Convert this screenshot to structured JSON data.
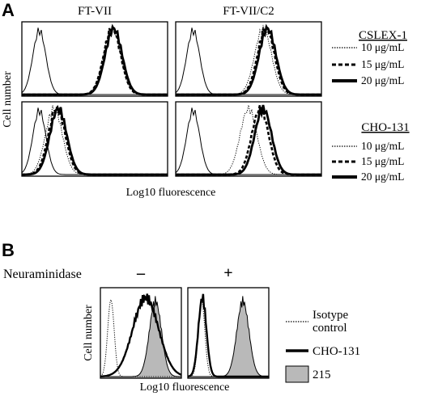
{
  "panel_a": {
    "letter": "A",
    "col_titles": [
      "FT-VII",
      "FT-VII/C2"
    ],
    "y_axis_label": "Cell number",
    "x_axis_label": "Log10 fluorescence",
    "legend_top": {
      "title": "CSLEX-1",
      "entries": [
        "10 μg/mL",
        "15 μg/mL",
        "20 μg/mL"
      ]
    },
    "legend_bottom": {
      "title": "CHO-131",
      "entries": [
        "10 μg/mL",
        "15 μg/mL",
        "20 μg/mL"
      ]
    }
  },
  "panel_b": {
    "letter": "B",
    "treatment_label": "Neuraminidase",
    "treatment_minus": "–",
    "treatment_plus": "+",
    "y_axis_label": "Cell number",
    "x_axis_label": "Log10 fluorescence",
    "legend": {
      "isotype_line1": "Isotype",
      "isotype_line2": "control",
      "cho131": "CHO-131",
      "ab215": "215"
    }
  },
  "styles": {
    "fill_215": "#b9b9b9",
    "line_color": "#000000"
  },
  "chart_data": [
    {
      "type": "area",
      "panel": "A",
      "x_scale": "log",
      "ylabel": "Cell number",
      "xlabel": "Log10 fluorescence",
      "subplots": [
        {
          "row": "CSLEX-1",
          "column": "FT-VII",
          "isotype_peak": 0.12,
          "peaks": {
            "10 μg/mL": 0.62,
            "15 μg/mL": 0.62,
            "20 μg/mL": 0.63
          }
        },
        {
          "row": "CSLEX-1",
          "column": "FT-VII/C2",
          "isotype_peak": 0.12,
          "peaks": {
            "10 μg/mL": 0.6,
            "15 μg/mL": 0.62,
            "20 μg/mL": 0.63
          }
        },
        {
          "row": "CHO-131",
          "column": "FT-VII",
          "isotype_peak": 0.12,
          "peaks": {
            "10 μg/mL": 0.22,
            "15 μg/mL": 0.24,
            "20 μg/mL": 0.25
          }
        },
        {
          "row": "CHO-131",
          "column": "FT-VII/C2",
          "isotype_peak": 0.12,
          "peaks": {
            "10 μg/mL": 0.5,
            "15 μg/mL": 0.58,
            "20 μg/mL": 0.6
          }
        }
      ]
    },
    {
      "type": "area",
      "panel": "B",
      "x_scale": "log",
      "ylabel": "Cell number",
      "xlabel": "Log10 fluorescence",
      "subplots": [
        {
          "treatment": "–",
          "isotype_peak": 0.13,
          "cho131_peak": 0.56,
          "ab215_peak": 0.68
        },
        {
          "treatment": "+",
          "isotype_peak": 0.17,
          "cho131_peak": 0.18,
          "ab215_peak": 0.68
        }
      ]
    }
  ]
}
